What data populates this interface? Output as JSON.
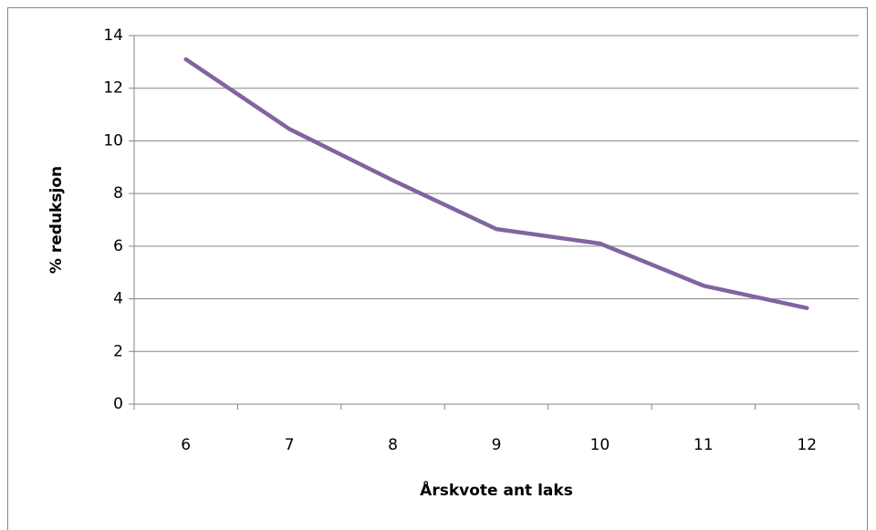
{
  "chart_data": {
    "type": "line",
    "categories": [
      "6",
      "7",
      "8",
      "9",
      "10",
      "11",
      "12"
    ],
    "series": [
      {
        "name": "% reduksjon",
        "color": "#8064a2",
        "values": [
          13.1,
          10.45,
          8.5,
          6.65,
          6.1,
          4.5,
          3.65
        ]
      }
    ],
    "ylim": [
      0,
      14
    ],
    "yticks": [
      0,
      2,
      4,
      6,
      8,
      10,
      12,
      14
    ],
    "grid": true,
    "y_label": "% reduksjon",
    "x_label": "Årskvote ant laks"
  }
}
